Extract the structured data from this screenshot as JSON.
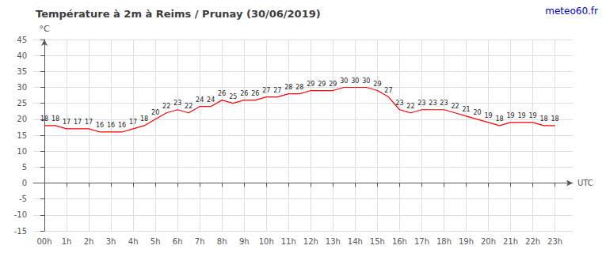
{
  "chart_data": {
    "type": "line",
    "title": "Température à 2m à Reims / Prunay (30/06/2019)",
    "xlabel": "UTC",
    "ylabel": "°C",
    "annotations": [
      {
        "text": "meteo60.fr",
        "color": "#0000cc"
      }
    ],
    "x": [
      0,
      0.5,
      1,
      1.5,
      2,
      2.5,
      3,
      3.5,
      4,
      4.5,
      5,
      5.5,
      6,
      6.5,
      7,
      7.5,
      8,
      8.5,
      9,
      9.5,
      10,
      10.5,
      11,
      11.5,
      12,
      12.5,
      13,
      13.5,
      14,
      14.5,
      15,
      15.5,
      16,
      16.5,
      17,
      17.5,
      18,
      18.5,
      19,
      19.5,
      20,
      20.5,
      21,
      21.5,
      22,
      22.5,
      23
    ],
    "values": [
      18,
      18,
      17,
      17,
      17,
      16,
      16,
      16,
      17,
      18,
      20,
      22,
      23,
      22,
      24,
      24,
      26,
      25,
      26,
      26,
      27,
      27,
      28,
      28,
      29,
      29,
      29,
      30,
      30,
      30,
      29,
      27,
      23,
      22,
      23,
      23,
      23,
      22,
      21,
      20,
      19,
      18,
      19,
      19,
      19,
      18,
      18
    ],
    "color": "#ff0000",
    "data_labels": true,
    "grid": true,
    "xlim": [
      -0.5,
      23.8
    ],
    "xticks": [
      {
        "value": 0,
        "label": "00h"
      },
      {
        "value": 1,
        "label": "1h"
      },
      {
        "value": 2,
        "label": "2h"
      },
      {
        "value": 3,
        "label": "3h"
      },
      {
        "value": 4,
        "label": "4h"
      },
      {
        "value": 5,
        "label": "5h"
      },
      {
        "value": 6,
        "label": "6h"
      },
      {
        "value": 7,
        "label": "7h"
      },
      {
        "value": 8,
        "label": "8h"
      },
      {
        "value": 9,
        "label": "9h"
      },
      {
        "value": 10,
        "label": "10h"
      },
      {
        "value": 11,
        "label": "11h"
      },
      {
        "value": 12,
        "label": "12h"
      },
      {
        "value": 13,
        "label": "13h"
      },
      {
        "value": 14,
        "label": "14h"
      },
      {
        "value": 15,
        "label": "15h"
      },
      {
        "value": 16,
        "label": "16h"
      },
      {
        "value": 17,
        "label": "17h"
      },
      {
        "value": 18,
        "label": "18h"
      },
      {
        "value": 19,
        "label": "19h"
      },
      {
        "value": 20,
        "label": "20h"
      },
      {
        "value": 21,
        "label": "21h"
      },
      {
        "value": 22,
        "label": "22h"
      },
      {
        "value": 23,
        "label": "23h"
      }
    ],
    "ylim": [
      -15,
      45
    ],
    "yticks": [
      -15,
      -10,
      -5,
      0,
      5,
      10,
      15,
      20,
      25,
      30,
      35,
      40,
      45
    ]
  }
}
